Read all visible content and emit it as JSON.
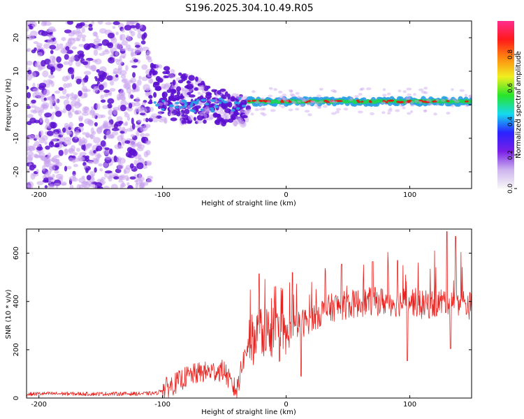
{
  "title": "S196.2025.304.10.49.R05",
  "colors": {
    "snr_line": "#e8231f",
    "spectro_sparse": "#c9a3ee",
    "spectro_dense": "#5c10d0",
    "band_core": "#1fd25a",
    "band_edge": "#2a9fe6",
    "band_hot": "#e51818",
    "axis": "#000000"
  },
  "chart_data": [
    {
      "type": "heatmap",
      "title": "S196.2025.304.10.49.R05",
      "xlabel": "Height of straight line (km)",
      "ylabel": "Frequency (Hz)",
      "xlim": [
        -210,
        150
      ],
      "ylim": [
        -25,
        25
      ],
      "x_ticks": [
        -200,
        -100,
        0,
        100
      ],
      "y_ticks": [
        -20,
        -10,
        0,
        10,
        20
      ],
      "colorbar": {
        "label": "Normalized spectral amplitude",
        "range": [
          0.0,
          1.0
        ],
        "ticks": [
          0.0,
          0.2,
          0.4,
          0.6,
          0.8
        ],
        "tick_labels": [
          "0.0",
          "0.2",
          "0.4",
          "0.6",
          "0.8"
        ],
        "colormap": [
          "#f8f8f8",
          "#cdb4ee",
          "#7a1fe6",
          "#2a22ff",
          "#16d9f0",
          "#28e528",
          "#f0f020",
          "#ff8a10",
          "#ff1a1a",
          "#ff2d8f"
        ]
      },
      "regions": [
        {
          "x_range": [
            -210,
            -110
          ],
          "description_amplitude": 0.15,
          "freq_range": [
            -25,
            25
          ],
          "pattern": "broadband speckle"
        },
        {
          "x_range": [
            -110,
            -30
          ],
          "description_amplitude": 0.3,
          "freq_range": [
            -8,
            12
          ],
          "pattern": "narrowing diagonal band"
        },
        {
          "x_range": [
            -30,
            150
          ],
          "description_amplitude": 0.5,
          "freq_range": [
            -1,
            2
          ],
          "pattern": "narrow band near 1 Hz"
        }
      ]
    },
    {
      "type": "line",
      "xlabel": "Height of straight line (km)",
      "ylabel": "SNR (10 * v/v)",
      "xlim": [
        -210,
        150
      ],
      "ylim": [
        0,
        700
      ],
      "x_ticks": [
        -200,
        -100,
        0,
        100
      ],
      "y_ticks": [
        0,
        200,
        400,
        600
      ],
      "series": [
        {
          "name": "SNR",
          "x": [
            -210,
            -200,
            -180,
            -160,
            -140,
            -120,
            -105,
            -100,
            -90,
            -80,
            -70,
            -60,
            -50,
            -45,
            -40,
            -35,
            -30,
            -25,
            -20,
            -15,
            -10,
            -5,
            0,
            10,
            20,
            30,
            40,
            50,
            60,
            70,
            80,
            90,
            100,
            110,
            120,
            130,
            140,
            150
          ],
          "values": [
            15,
            18,
            18,
            17,
            18,
            18,
            20,
            35,
            60,
            90,
            105,
            110,
            115,
            60,
            30,
            150,
            230,
            250,
            270,
            280,
            270,
            250,
            255,
            300,
            330,
            360,
            380,
            385,
            395,
            400,
            400,
            395,
            405,
            385,
            390,
            405,
            400,
            380
          ],
          "peaks": [
            {
              "x": -22,
              "y": 515
            },
            {
              "x": 5,
              "y": 520
            },
            {
              "x": 45,
              "y": 555
            },
            {
              "x": 70,
              "y": 565
            },
            {
              "x": 90,
              "y": 570
            },
            {
              "x": 130,
              "y": 690
            },
            {
              "x": 137,
              "y": 670
            }
          ],
          "dips": [
            {
              "x": 12,
              "y": 90
            },
            {
              "x": 98,
              "y": 155
            },
            {
              "x": 133,
              "y": 205
            }
          ]
        }
      ]
    }
  ]
}
